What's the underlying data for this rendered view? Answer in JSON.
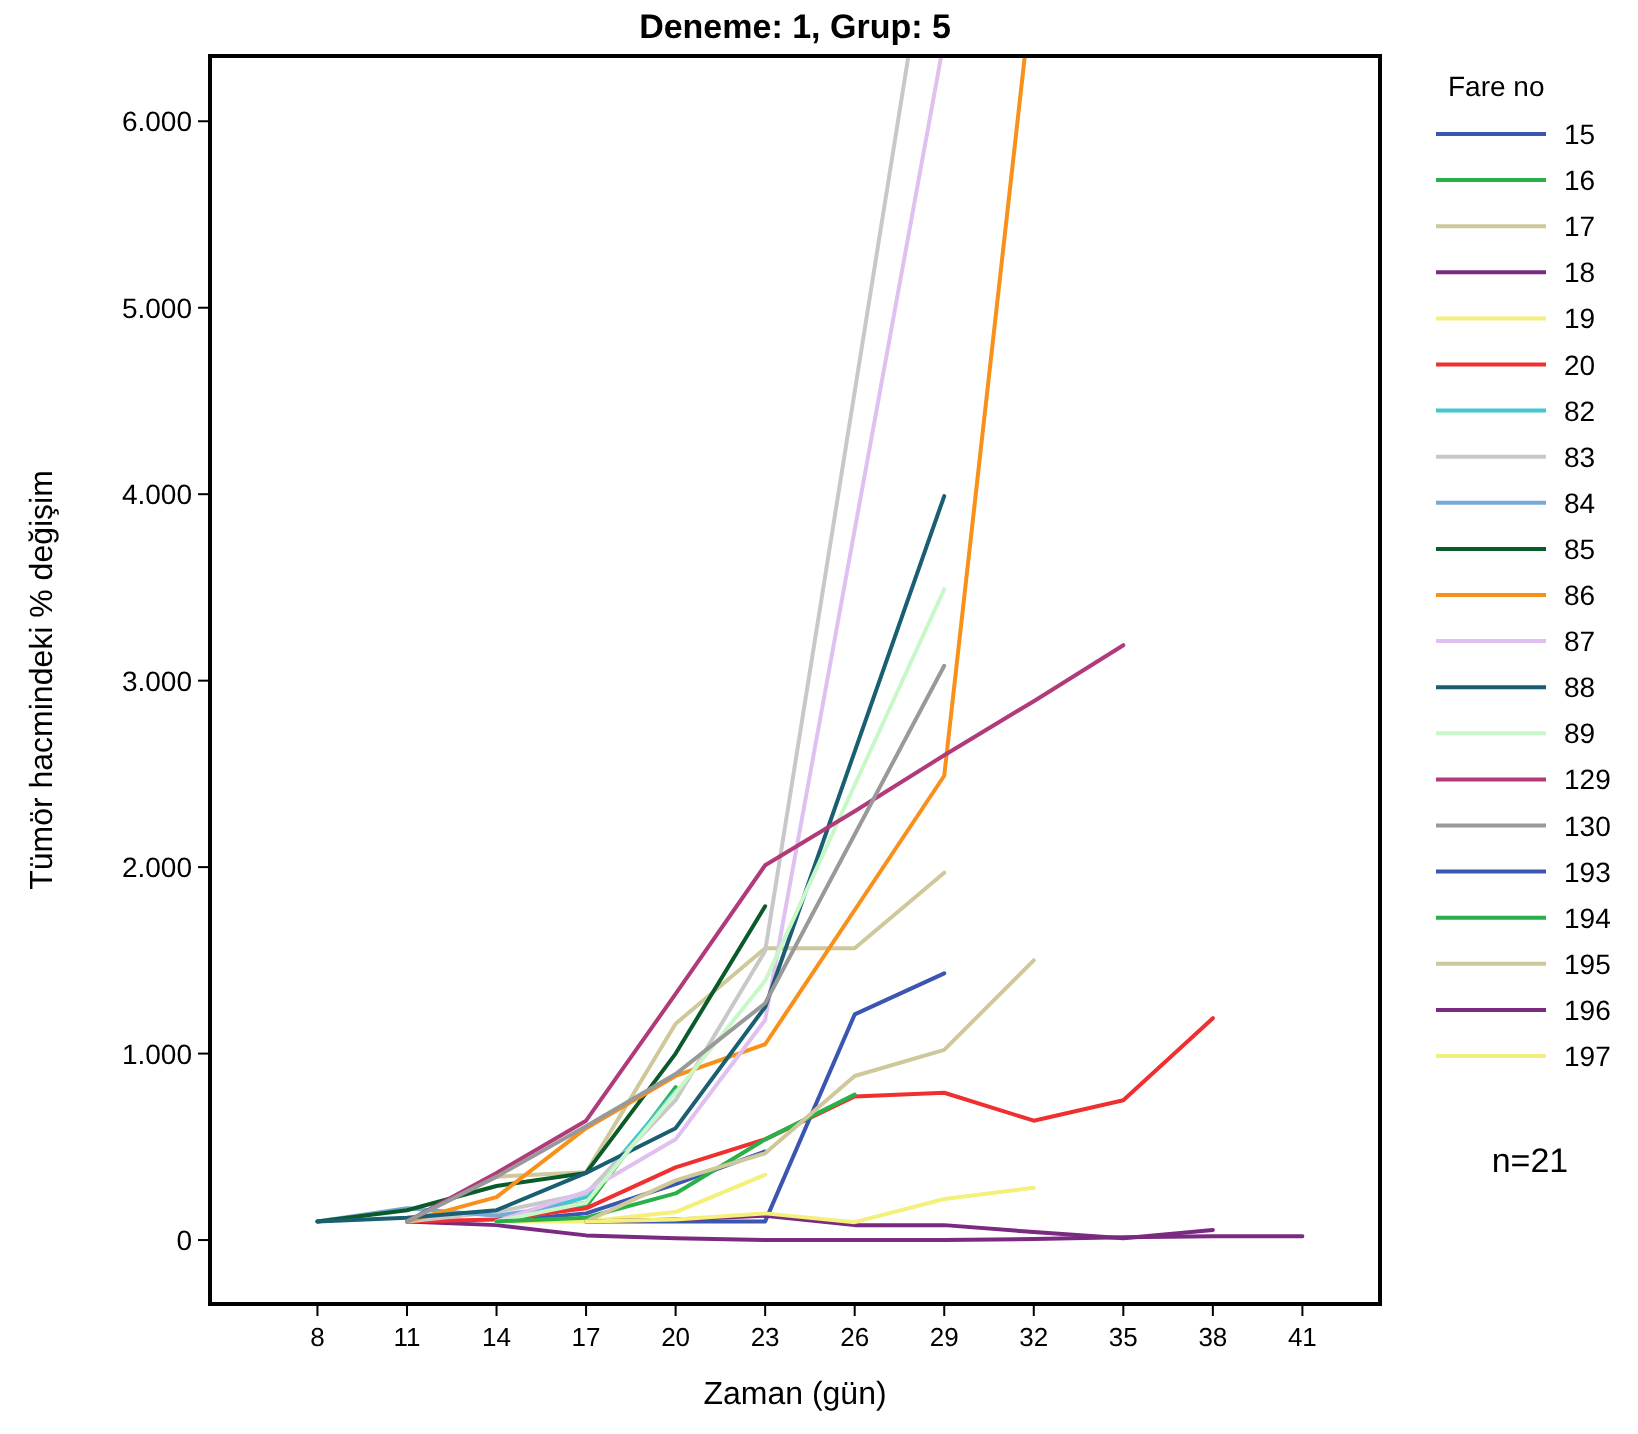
{
  "chart_data": {
    "type": "line",
    "title": "Deneme: 1, Grup: 5",
    "xlabel": "Zaman (gün)",
    "ylabel": "Tümör hacmindeki % değişim",
    "legend_title": "Fare no",
    "legend": "right",
    "grid": false,
    "marker": "none",
    "line_style": "solid",
    "xlim": [
      4.4,
      43.6
    ],
    "ylim": [
      -343,
      6350
    ],
    "xticks": [
      8,
      11,
      14,
      17,
      20,
      23,
      26,
      29,
      32,
      35,
      38,
      41
    ],
    "yticks": [
      0,
      {
        "value": 1000,
        "label": "1.000"
      },
      {
        "value": 2000,
        "label": "2.000"
      },
      {
        "value": 3000,
        "label": "3.000"
      },
      {
        "value": 4000,
        "label": "4.000"
      },
      {
        "value": 5000,
        "label": "5.000"
      },
      {
        "value": 6000,
        "label": "6.000"
      }
    ],
    "annotations": [
      "n=21"
    ],
    "series": [
      {
        "name": "15",
        "color": "#3a56b0",
        "x": [
          14,
          17,
          20,
          23
        ],
        "values": [
          100,
          143,
          300,
          475
        ]
      },
      {
        "name": "16",
        "color": "#2ab04a",
        "x": [
          14,
          17,
          20
        ],
        "values": [
          100,
          180,
          820
        ]
      },
      {
        "name": "17",
        "color": "#cfc89a",
        "x": [
          11,
          14,
          17,
          20,
          23,
          26,
          29
        ],
        "values": [
          100,
          340,
          364,
          1160,
          1565,
          1565,
          1970
        ]
      },
      {
        "name": "18",
        "color": "#7a2a80",
        "x": [
          11,
          14,
          17,
          20,
          23,
          26,
          29,
          32,
          35,
          38,
          41
        ],
        "values": [
          100,
          80,
          25,
          10,
          0,
          0,
          0,
          5,
          15,
          20,
          20
        ]
      },
      {
        "name": "19",
        "color": "#f5f07a",
        "x": [
          14,
          17,
          20,
          23
        ],
        "values": [
          100,
          100,
          150,
          350
        ]
      },
      {
        "name": "20",
        "color": "#f03030",
        "x": [
          11,
          14,
          17,
          20,
          23,
          26,
          29,
          32,
          35,
          38
        ],
        "values": [
          100,
          110,
          170,
          390,
          540,
          770,
          790,
          640,
          750,
          1190
        ]
      },
      {
        "name": "82",
        "color": "#40c8d0",
        "x": [
          14,
          17,
          20
        ],
        "values": [
          100,
          230,
          800
        ]
      },
      {
        "name": "83",
        "color": "#c8c8c8",
        "x": [
          11,
          14,
          17,
          20,
          23,
          27.8
        ],
        "values": [
          100,
          150,
          250,
          750,
          1550,
          6350
        ]
      },
      {
        "name": "84",
        "color": "#78a8d8",
        "x": [
          8,
          11,
          14,
          17
        ],
        "values": [
          100,
          170,
          130,
          200
        ]
      },
      {
        "name": "85",
        "color": "#0a5a2a",
        "x": [
          8,
          11,
          14,
          17,
          20,
          23
        ],
        "values": [
          100,
          160,
          290,
          360,
          1000,
          1790
        ]
      },
      {
        "name": "86",
        "color": "#f8901a",
        "x": [
          11,
          14,
          17,
          20,
          23,
          29,
          31.7
        ],
        "values": [
          100,
          230,
          600,
          880,
          1050,
          2490,
          6350
        ]
      },
      {
        "name": "87",
        "color": "#e0c0f0",
        "x": [
          14,
          17,
          20,
          23,
          28.9
        ],
        "values": [
          100,
          260,
          540,
          1180,
          6350
        ]
      },
      {
        "name": "88",
        "color": "#1a5e72",
        "x": [
          8,
          11,
          14,
          17,
          20,
          23,
          29
        ],
        "values": [
          100,
          120,
          160,
          360,
          600,
          1250,
          3990
        ]
      },
      {
        "name": "89",
        "color": "#c8f8c8",
        "x": [
          14,
          17,
          20,
          23,
          29
        ],
        "values": [
          100,
          200,
          790,
          1390,
          3490
        ]
      },
      {
        "name": "129",
        "color": "#b03a7a",
        "x": [
          11,
          14,
          17,
          20,
          23,
          26,
          29,
          32,
          35
        ],
        "values": [
          100,
          360,
          640,
          1320,
          2010,
          2300,
          2600,
          2890,
          3190
        ]
      },
      {
        "name": "130",
        "color": "#999999",
        "x": [
          11,
          14,
          17,
          20,
          23,
          29
        ],
        "values": [
          100,
          340,
          610,
          890,
          1270,
          3080
        ]
      },
      {
        "name": "193",
        "color": "#3a56b0",
        "x": [
          17,
          20,
          23,
          26,
          29
        ],
        "values": [
          100,
          100,
          100,
          1210,
          1430
        ]
      },
      {
        "name": "194",
        "color": "#2ab04a",
        "x": [
          14,
          17,
          20,
          23,
          26
        ],
        "values": [
          100,
          120,
          250,
          540,
          780
        ]
      },
      {
        "name": "195",
        "color": "#cfc89a",
        "x": [
          17,
          20,
          23,
          26,
          29,
          32
        ],
        "values": [
          100,
          320,
          465,
          880,
          1020,
          1500
        ]
      },
      {
        "name": "196",
        "color": "#7a2a80",
        "x": [
          17,
          20,
          23,
          26,
          29,
          32,
          35,
          38
        ],
        "values": [
          100,
          110,
          130,
          80,
          80,
          43,
          10,
          54
        ]
      },
      {
        "name": "197",
        "color": "#f5f07a",
        "x": [
          17,
          20,
          23,
          26,
          29,
          32
        ],
        "values": [
          100,
          110,
          143,
          96,
          220,
          280
        ]
      }
    ]
  }
}
